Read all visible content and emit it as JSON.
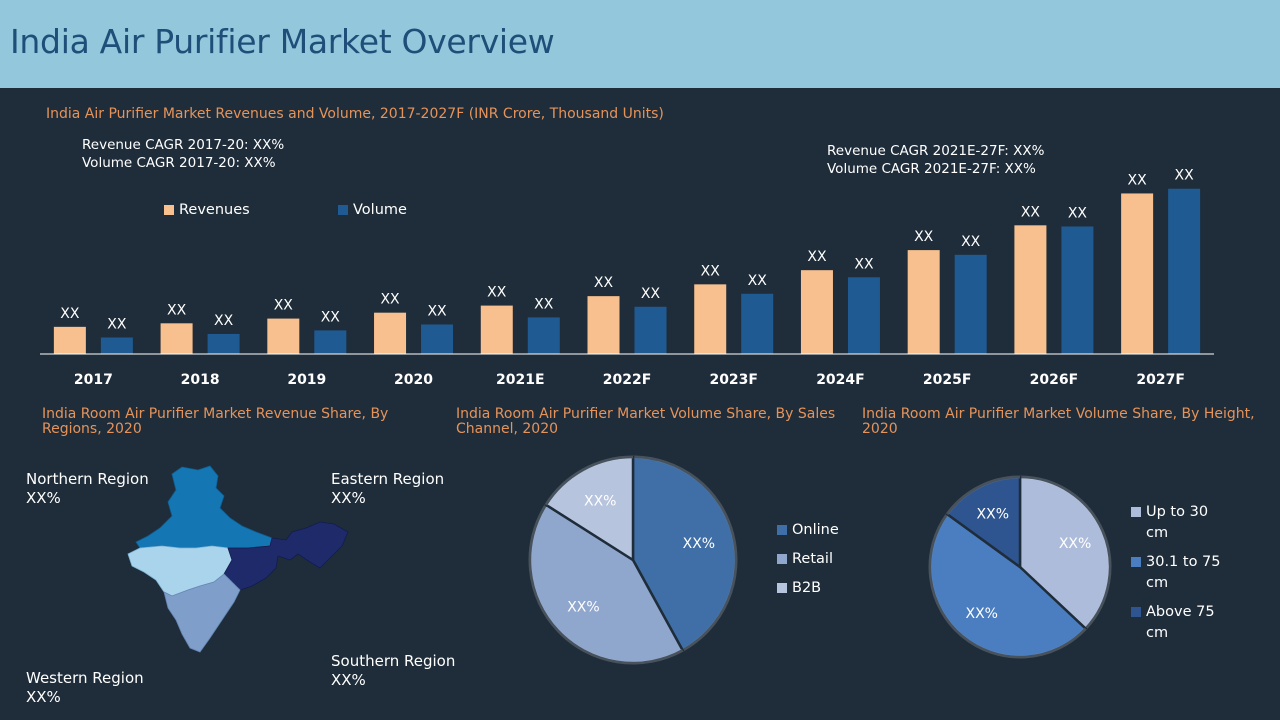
{
  "header": {
    "title": "India Air Purifier Market Overview"
  },
  "colors": {
    "revenue": "#f8c08f",
    "volume": "#1f5a92",
    "header_bg": "#93c8dc",
    "accent": "#e6935a"
  },
  "bar_section": {
    "title": "India Air Purifier Market Revenues and Volume, 2017-2027F (INR Crore, Thousand Units)",
    "cagr_left": [
      "Revenue CAGR 2017-20: XX%",
      "Volume CAGR 2017-20: XX%"
    ],
    "cagr_right": [
      "Revenue CAGR 2021E-27F: XX%",
      "Volume CAGR 2021E-27F: XX%"
    ],
    "legend": {
      "revenue": "Revenues",
      "volume": "Volume"
    }
  },
  "map_section": {
    "title": "India Room Air Purifier Market Revenue Share, By Regions, 2020",
    "regions": {
      "northern": {
        "name": "Northern Region",
        "value": "XX%"
      },
      "eastern": {
        "name": "Eastern Region",
        "value": "XX%"
      },
      "western": {
        "name": "Western Region",
        "value": "XX%"
      },
      "southern": {
        "name": "Southern Region",
        "value": "XX%"
      }
    }
  },
  "chart_data": [
    {
      "type": "bar",
      "title": "India Air Purifier Market Revenues and Volume, 2017-2027F (INR Crore, Thousand Units)",
      "categories": [
        "2017",
        "2018",
        "2019",
        "2020",
        "2021E",
        "2022F",
        "2023F",
        "2024F",
        "2025F",
        "2026F",
        "2027F"
      ],
      "series": [
        {
          "name": "Revenues",
          "values": [
            23,
            26,
            30,
            35,
            41,
            49,
            59,
            71,
            88,
            109,
            136
          ],
          "labels": [
            "XX",
            "XX",
            "XX",
            "XX",
            "XX",
            "XX",
            "XX",
            "XX",
            "XX",
            "XX",
            "XX"
          ]
        },
        {
          "name": "Volume",
          "values": [
            14,
            17,
            20,
            25,
            31,
            40,
            51,
            65,
            84,
            108,
            140
          ],
          "labels": [
            "XX",
            "XX",
            "XX",
            "XX",
            "XX",
            "XX",
            "XX",
            "XX",
            "XX",
            "XX",
            "XX"
          ]
        }
      ],
      "ylim": [
        0,
        160
      ],
      "legend": "top-left"
    },
    {
      "type": "pie",
      "title": "India Room Air Purifier Market Volume Share, By Sales Channel, 2020",
      "labels": [
        "Online",
        "Retail",
        "B2B"
      ],
      "values": [
        42,
        42,
        16
      ],
      "slice_labels": [
        "XX%",
        "XX%",
        "XX%"
      ],
      "colors": [
        "#3f6fa6",
        "#8fa6cd",
        "#b7c4de"
      ],
      "legend": "right"
    },
    {
      "type": "pie",
      "title": "India Room Air Purifier Market Volume Share, By Height, 2020",
      "labels": [
        "Up to 30 cm",
        "30.1 to 75 cm",
        "Above 75 cm"
      ],
      "values": [
        37,
        48,
        15
      ],
      "slice_labels": [
        "XX%",
        "XX%",
        "XX%"
      ],
      "colors": [
        "#aebcdc",
        "#4a7ec0",
        "#2e5590"
      ],
      "legend": "right"
    }
  ]
}
